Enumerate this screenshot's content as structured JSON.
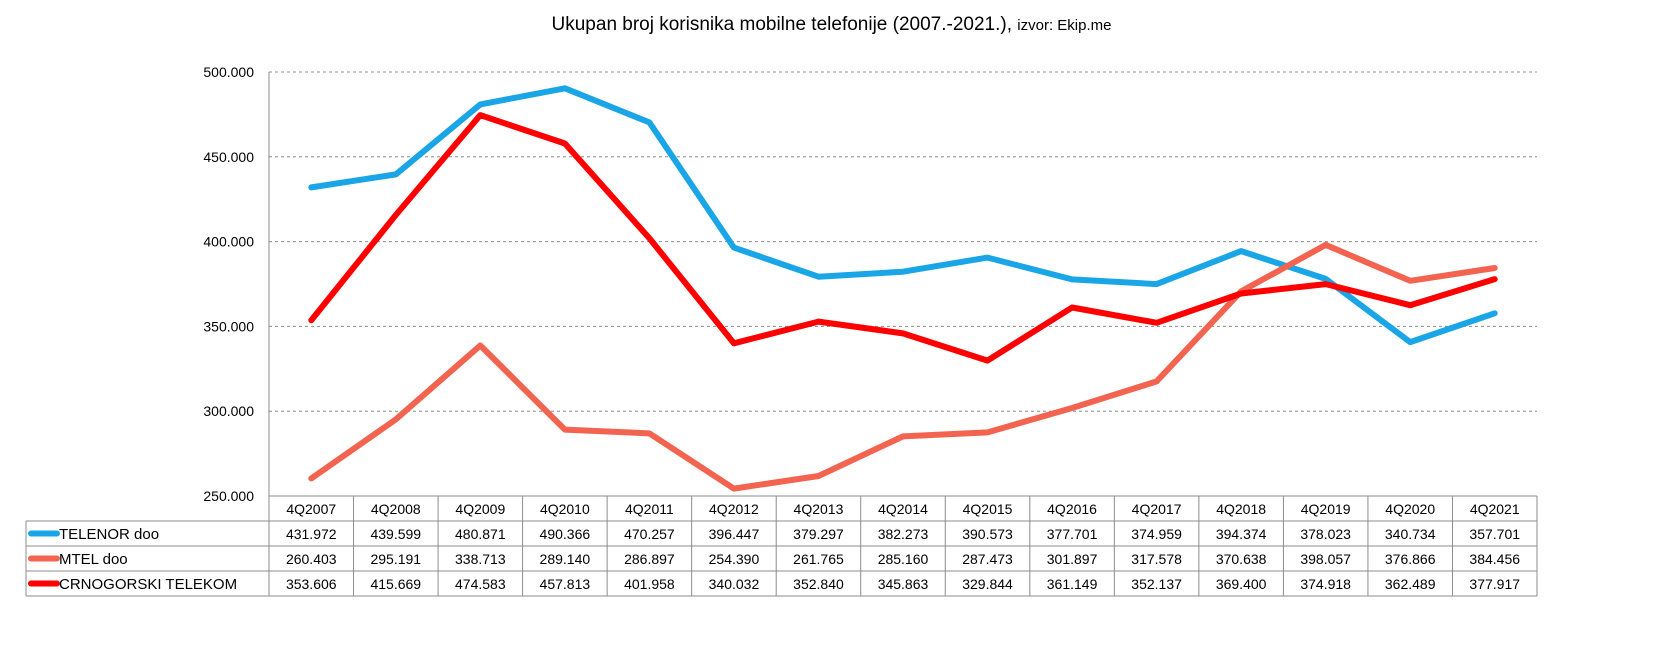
{
  "chart_data": {
    "type": "line",
    "title": "Ukupan broj korisnika mobilne telefonije (2007.-2021.),",
    "source_note": "izvor: Ekip.me",
    "xlabel": "",
    "ylabel": "",
    "ylim": [
      250000,
      500000
    ],
    "y_ticks": [
      250000,
      300000,
      350000,
      400000,
      450000,
      500000
    ],
    "y_tick_labels": [
      "250.000",
      "300.000",
      "350.000",
      "400.000",
      "450.000",
      "500.000"
    ],
    "grid": true,
    "legend": "data-table-below",
    "categories": [
      "4Q2007",
      "4Q2008",
      "4Q2009",
      "4Q2010",
      "4Q2011",
      "4Q2012",
      "4Q2013",
      "4Q2014",
      "4Q2015",
      "4Q2016",
      "4Q2017",
      "4Q2018",
      "4Q2019",
      "4Q2020",
      "4Q2021"
    ],
    "series": [
      {
        "name": "TELENOR doo",
        "color": "#1aa6e6",
        "values": [
          431972,
          439599,
          480871,
          490366,
          470257,
          396447,
          379297,
          382273,
          390573,
          377701,
          374959,
          394374,
          378023,
          340734,
          357701
        ],
        "labels": [
          "431.972",
          "439.599",
          "480.871",
          "490.366",
          "470.257",
          "396.447",
          "379.297",
          "382.273",
          "390.573",
          "377.701",
          "374.959",
          "394.374",
          "378.023",
          "340.734",
          "357.701"
        ]
      },
      {
        "name": "MTEL doo",
        "color": "#f26450",
        "values": [
          260403,
          295191,
          338713,
          289140,
          286897,
          254390,
          261765,
          285160,
          287473,
          301897,
          317578,
          370638,
          398057,
          376866,
          384456
        ],
        "labels": [
          "260.403",
          "295.191",
          "338.713",
          "289.140",
          "286.897",
          "254.390",
          "261.765",
          "285.160",
          "287.473",
          "301.897",
          "317.578",
          "370.638",
          "398.057",
          "376.866",
          "384.456"
        ]
      },
      {
        "name": "CRNOGORSKI TELEKOM",
        "color": "#ff0000",
        "values": [
          353606,
          415669,
          474583,
          457813,
          401958,
          340032,
          352840,
          345863,
          329844,
          361149,
          352137,
          369400,
          374918,
          362489,
          377917
        ],
        "labels": [
          "353.606",
          "415.669",
          "474.583",
          "457.813",
          "401.958",
          "340.032",
          "352.840",
          "345.863",
          "329.844",
          "361.149",
          "352.137",
          "369.400",
          "374.918",
          "362.489",
          "377.917"
        ]
      }
    ]
  }
}
